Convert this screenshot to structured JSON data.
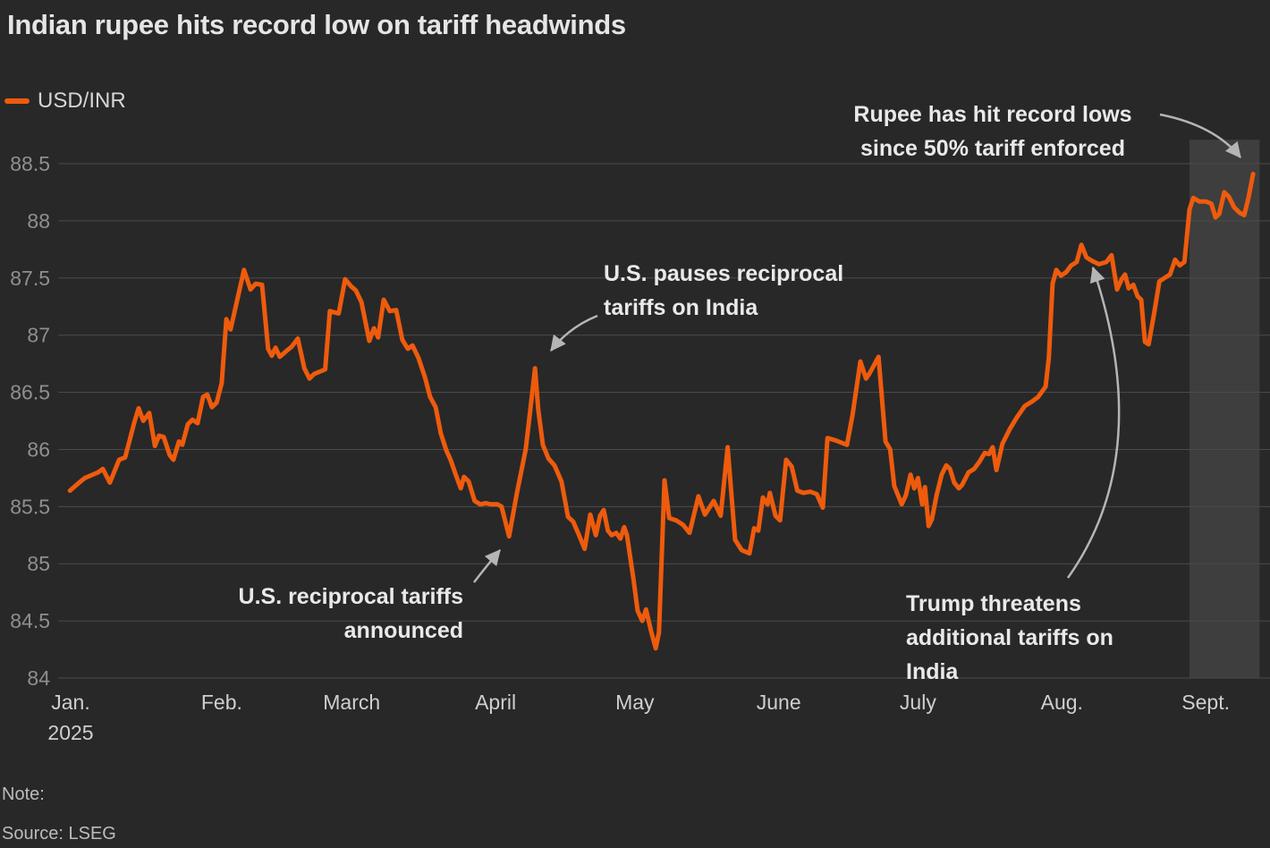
{
  "header": {
    "title": "Indian rupee hits record low on tariff headwinds"
  },
  "legend": {
    "label": "USD/INR",
    "swatch_color": "#ee5b0d"
  },
  "annotations": {
    "record": {
      "line1": "Rupee has hit record lows",
      "line2": "since 50% tariff enforced"
    },
    "pause": {
      "line1": "U.S. pauses reciprocal",
      "line2": "tariffs on India"
    },
    "announced": {
      "line1": "U.S. reciprocal tariffs",
      "line2": "announced"
    },
    "trump": {
      "line1": "Trump threatens",
      "line2": "additional tariffs on",
      "line3": "India"
    }
  },
  "footer": {
    "note": "Note:",
    "source": "Source: LSEG"
  },
  "chart_data": {
    "type": "line",
    "title": "Indian rupee hits record low on tariff headwinds",
    "legend_position": "top-left",
    "grid": "horizontal",
    "background": "#282828",
    "gridline_color": "#4a4a4a",
    "x_unit": "days since Jan 1 2025",
    "xlim_days": [
      -4,
      256.6
    ],
    "ylim": [
      84,
      88.5
    ],
    "yticks": [
      {
        "v": 88.5,
        "label": "88.5"
      },
      {
        "v": 88,
        "label": "88"
      },
      {
        "v": 87.5,
        "label": "87.5"
      },
      {
        "v": 87,
        "label": "87"
      },
      {
        "v": 86.5,
        "label": "86.5"
      },
      {
        "v": 86,
        "label": "86"
      },
      {
        "v": 85.5,
        "label": "85.5"
      },
      {
        "v": 85,
        "label": "85"
      },
      {
        "v": 84.5,
        "label": "84.5"
      },
      {
        "v": 84,
        "label": "84"
      }
    ],
    "xticks": [
      {
        "label": "Jan.",
        "sublabel": "2025",
        "day": 0,
        "dx": -8
      },
      {
        "label": "Feb.",
        "day": 31
      },
      {
        "label": "March",
        "day": 59
      },
      {
        "label": "April",
        "day": 90
      },
      {
        "label": "May",
        "day": 120
      },
      {
        "label": "June",
        "day": 151
      },
      {
        "label": "July",
        "day": 181
      },
      {
        "label": "Aug.",
        "day": 212
      },
      {
        "label": "Sept.",
        "day": 243
      }
    ],
    "highlight_band": {
      "from_day": 239.5,
      "to_day": 254.6,
      "top_value": 88.71,
      "bottom_value": 84,
      "color": "#3e3e3e",
      "meaning": "period since 50% tariff enforced"
    },
    "series": [
      {
        "name": "USD/INR",
        "color": "#ee5b0d",
        "stroke_width": 5,
        "points": [
          [
            -1.7,
            85.64
          ],
          [
            0.6,
            85.72
          ],
          [
            1.5,
            85.75
          ],
          [
            4.4,
            85.8
          ],
          [
            5.4,
            85.83
          ],
          [
            6.9,
            85.71
          ],
          [
            7.7,
            85.79
          ],
          [
            8.9,
            85.91
          ],
          [
            10.2,
            85.93
          ],
          [
            12.2,
            86.24
          ],
          [
            13.1,
            86.36
          ],
          [
            14.1,
            86.25
          ],
          [
            15.4,
            86.32
          ],
          [
            16.6,
            86.03
          ],
          [
            17.5,
            86.12
          ],
          [
            18.5,
            86.11
          ],
          [
            19.8,
            85.95
          ],
          [
            20.6,
            85.91
          ],
          [
            21.8,
            86.07
          ],
          [
            22.5,
            86.04
          ],
          [
            23.7,
            86.22
          ],
          [
            24.7,
            86.26
          ],
          [
            25.8,
            86.23
          ],
          [
            27,
            86.46
          ],
          [
            27.9,
            86.48
          ],
          [
            28.9,
            86.37
          ],
          [
            29.9,
            86.41
          ],
          [
            31,
            86.58
          ],
          [
            32,
            87.14
          ],
          [
            32.9,
            87.05
          ],
          [
            35.8,
            87.57
          ],
          [
            37.2,
            87.4
          ],
          [
            38.3,
            87.45
          ],
          [
            39.7,
            87.44
          ],
          [
            41,
            86.88
          ],
          [
            41.8,
            86.82
          ],
          [
            42.6,
            86.89
          ],
          [
            43.5,
            86.81
          ],
          [
            44.9,
            86.86
          ],
          [
            46.1,
            86.9
          ],
          [
            47.4,
            86.97
          ],
          [
            48.8,
            86.71
          ],
          [
            49.9,
            86.62
          ],
          [
            50.9,
            86.66
          ],
          [
            53.3,
            86.7
          ],
          [
            54.3,
            87.21
          ],
          [
            56.2,
            87.19
          ],
          [
            57.6,
            87.49
          ],
          [
            58.8,
            87.43
          ],
          [
            59.9,
            87.39
          ],
          [
            61.1,
            87.29
          ],
          [
            62.8,
            86.95
          ],
          [
            63.8,
            87.06
          ],
          [
            64.7,
            86.98
          ],
          [
            65.9,
            87.31
          ],
          [
            67.2,
            87.21
          ],
          [
            68.6,
            87.22
          ],
          [
            69.9,
            86.96
          ],
          [
            71.1,
            86.88
          ],
          [
            72.1,
            86.91
          ],
          [
            73.4,
            86.8
          ],
          [
            74.8,
            86.63
          ],
          [
            75.9,
            86.46
          ],
          [
            77.1,
            86.37
          ],
          [
            78.2,
            86.14
          ],
          [
            79.4,
            85.99
          ],
          [
            80.3,
            85.91
          ],
          [
            81.5,
            85.77
          ],
          [
            82.5,
            85.66
          ],
          [
            83.2,
            85.76
          ],
          [
            84.2,
            85.72
          ],
          [
            85.5,
            85.55
          ],
          [
            86.7,
            85.52
          ],
          [
            87.9,
            85.53
          ],
          [
            89,
            85.52
          ],
          [
            90.4,
            85.52
          ],
          [
            91.3,
            85.5
          ],
          [
            92.9,
            85.24
          ],
          [
            94.6,
            85.62
          ],
          [
            96.5,
            86.0
          ],
          [
            97.5,
            86.35
          ],
          [
            98.5,
            86.71
          ],
          [
            99.2,
            86.35
          ],
          [
            100.2,
            86.04
          ],
          [
            101.4,
            85.92
          ],
          [
            102.7,
            85.86
          ],
          [
            104.2,
            85.72
          ],
          [
            105.6,
            85.41
          ],
          [
            106.7,
            85.37
          ],
          [
            108.1,
            85.24
          ],
          [
            109.2,
            85.13
          ],
          [
            110.4,
            85.43
          ],
          [
            111.6,
            85.25
          ],
          [
            112.5,
            85.42
          ],
          [
            113.3,
            85.47
          ],
          [
            114.2,
            85.29
          ],
          [
            115,
            85.25
          ],
          [
            116,
            85.27
          ],
          [
            116.9,
            85.22
          ],
          [
            117.7,
            85.32
          ],
          [
            118.3,
            85.25
          ],
          [
            119.7,
            84.87
          ],
          [
            120.6,
            84.59
          ],
          [
            121.6,
            84.5
          ],
          [
            122.4,
            84.6
          ],
          [
            123.5,
            84.41
          ],
          [
            124.5,
            84.26
          ],
          [
            125.2,
            84.4
          ],
          [
            126.4,
            85.73
          ],
          [
            127.4,
            85.4
          ],
          [
            128.9,
            85.38
          ],
          [
            130.4,
            85.34
          ],
          [
            131.8,
            85.27
          ],
          [
            133.7,
            85.59
          ],
          [
            135.1,
            85.43
          ],
          [
            137,
            85.55
          ],
          [
            138.5,
            85.42
          ],
          [
            140,
            86.02
          ],
          [
            141.6,
            85.21
          ],
          [
            143,
            85.12
          ],
          [
            144.7,
            85.09
          ],
          [
            145.7,
            85.31
          ],
          [
            146.6,
            85.29
          ],
          [
            147.6,
            85.58
          ],
          [
            148.6,
            85.52
          ],
          [
            149.1,
            85.62
          ],
          [
            150.3,
            85.42
          ],
          [
            151.3,
            85.38
          ],
          [
            152.6,
            85.91
          ],
          [
            153.8,
            85.85
          ],
          [
            155,
            85.64
          ],
          [
            156.3,
            85.62
          ],
          [
            157.8,
            85.63
          ],
          [
            159.2,
            85.61
          ],
          [
            160.5,
            85.49
          ],
          [
            161.5,
            86.1
          ],
          [
            163.2,
            86.08
          ],
          [
            165.7,
            86.04
          ],
          [
            166.9,
            86.3
          ],
          [
            168.6,
            86.77
          ],
          [
            169.8,
            86.62
          ],
          [
            170.5,
            86.66
          ],
          [
            172.5,
            86.81
          ],
          [
            174,
            86.07
          ],
          [
            175,
            86.0
          ],
          [
            175.9,
            85.68
          ],
          [
            177.5,
            85.52
          ],
          [
            178.4,
            85.6
          ],
          [
            179.4,
            85.78
          ],
          [
            180.2,
            85.66
          ],
          [
            181,
            85.75
          ],
          [
            181.9,
            85.52
          ],
          [
            182.5,
            85.67
          ],
          [
            183.3,
            85.33
          ],
          [
            184,
            85.39
          ],
          [
            185,
            85.6
          ],
          [
            186.1,
            85.78
          ],
          [
            187.1,
            85.86
          ],
          [
            187.9,
            85.83
          ],
          [
            188.8,
            85.71
          ],
          [
            189.8,
            85.66
          ],
          [
            190.5,
            85.69
          ],
          [
            191.9,
            85.8
          ],
          [
            193.1,
            85.83
          ],
          [
            194.2,
            85.89
          ],
          [
            195.4,
            85.97
          ],
          [
            196.3,
            85.96
          ],
          [
            197.1,
            86.02
          ],
          [
            197.9,
            85.82
          ],
          [
            199.2,
            86.05
          ],
          [
            200.8,
            86.18
          ],
          [
            202.3,
            86.28
          ],
          [
            204,
            86.38
          ],
          [
            205.6,
            86.42
          ],
          [
            206.9,
            86.46
          ],
          [
            208.5,
            86.55
          ],
          [
            209.2,
            86.8
          ],
          [
            210,
            87.45
          ],
          [
            210.8,
            87.57
          ],
          [
            211.8,
            87.52
          ],
          [
            212.9,
            87.55
          ],
          [
            214,
            87.61
          ],
          [
            215.2,
            87.64
          ],
          [
            216.2,
            87.79
          ],
          [
            217.3,
            87.68
          ],
          [
            218.5,
            87.65
          ],
          [
            220,
            87.62
          ],
          [
            221.6,
            87.64
          ],
          [
            222.7,
            87.7
          ],
          [
            223.9,
            87.4
          ],
          [
            224.9,
            87.49
          ],
          [
            225.6,
            87.53
          ],
          [
            226.4,
            87.41
          ],
          [
            227.4,
            87.44
          ],
          [
            228.3,
            87.34
          ],
          [
            229.1,
            87.31
          ],
          [
            229.9,
            86.94
          ],
          [
            230.7,
            86.92
          ],
          [
            231.8,
            87.17
          ],
          [
            233,
            87.47
          ],
          [
            234.1,
            87.5
          ],
          [
            235.3,
            87.53
          ],
          [
            236.4,
            87.66
          ],
          [
            237.4,
            87.61
          ],
          [
            238.4,
            87.64
          ],
          [
            239.5,
            88.1
          ],
          [
            240.3,
            88.2
          ],
          [
            241.6,
            88.17
          ],
          [
            243,
            88.17
          ],
          [
            244.2,
            88.15
          ],
          [
            245.1,
            88.03
          ],
          [
            245.9,
            88.06
          ],
          [
            247,
            88.25
          ],
          [
            248,
            88.21
          ],
          [
            249.1,
            88.12
          ],
          [
            250.3,
            88.07
          ],
          [
            251.3,
            88.05
          ],
          [
            252.2,
            88.2
          ],
          [
            253.2,
            88.41
          ]
        ]
      }
    ]
  }
}
